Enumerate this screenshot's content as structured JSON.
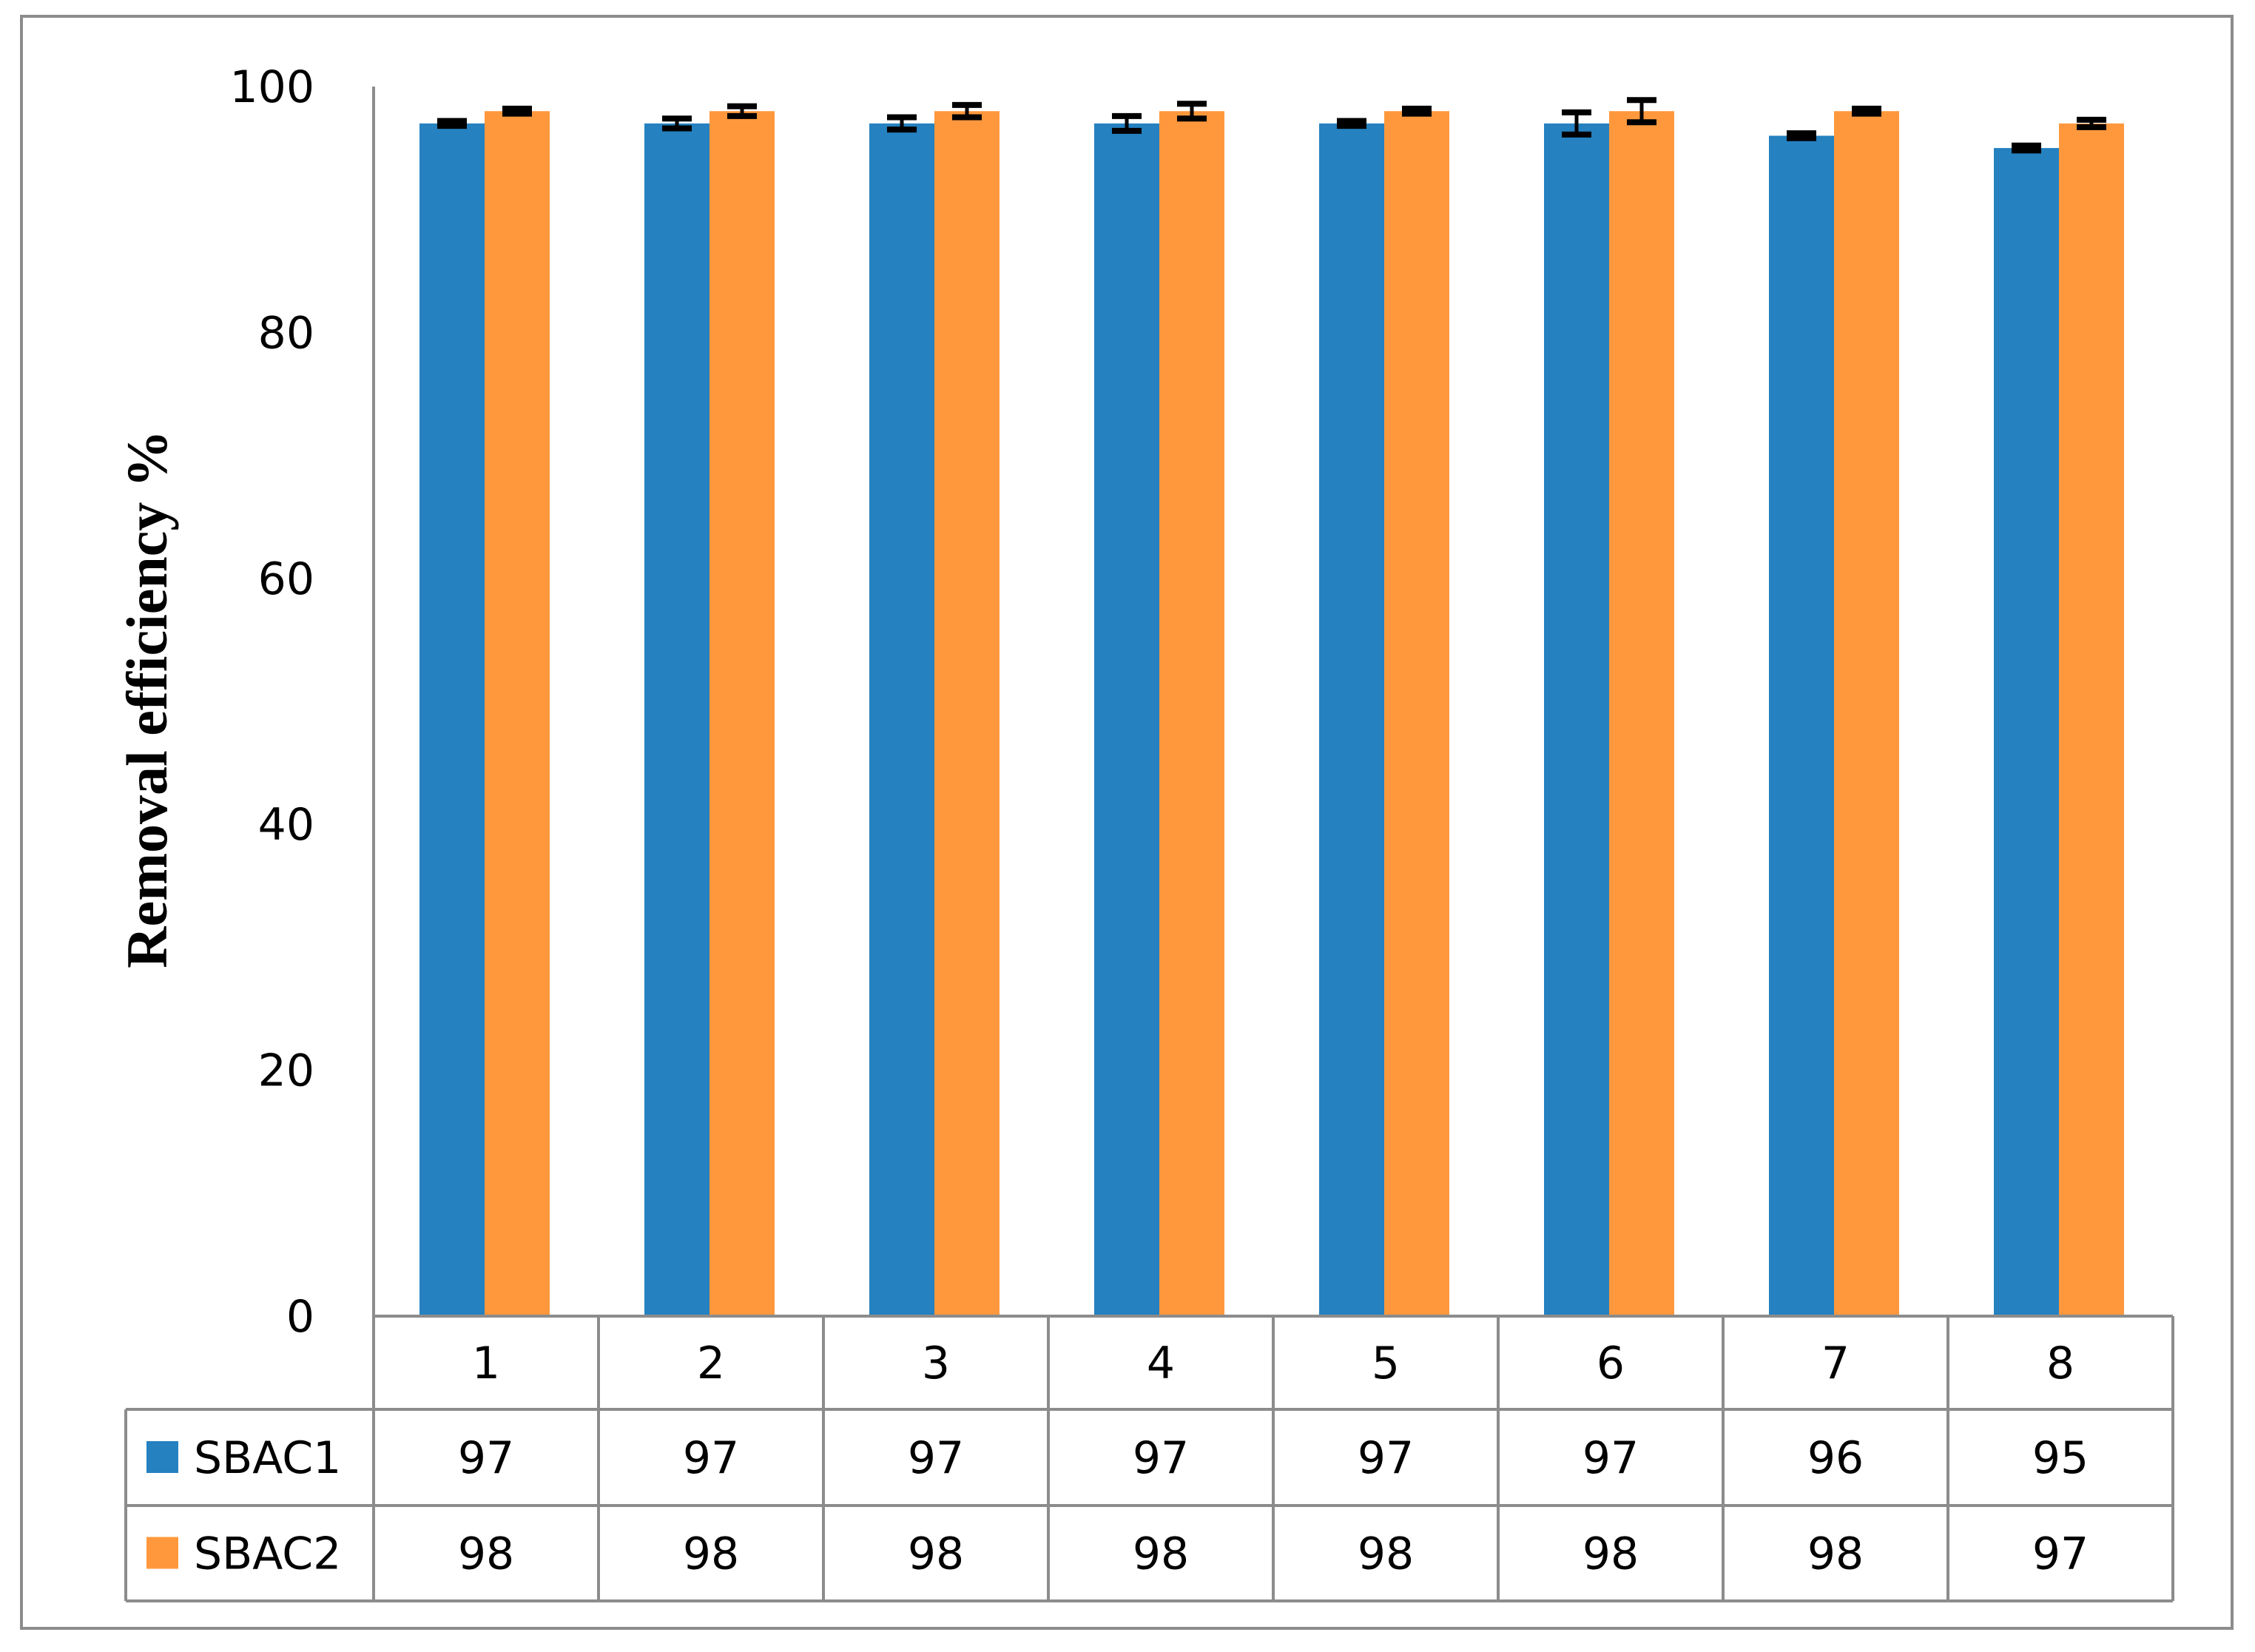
{
  "chart_data": {
    "type": "bar",
    "title": "",
    "xlabel": "",
    "ylabel": "Removal  efficiency %",
    "ylim": [
      0,
      100
    ],
    "yticks": [
      0,
      20,
      40,
      60,
      80,
      100
    ],
    "categories": [
      "1",
      "2",
      "3",
      "4",
      "5",
      "6",
      "7",
      "8"
    ],
    "grid": false,
    "legend_placement": "data-table",
    "series": [
      {
        "name": "SBAC1",
        "color": "#2581c0",
        "values": [
          97,
          97,
          97,
          97,
          97,
          97,
          96,
          95
        ],
        "errors": [
          0.2,
          0.4,
          0.5,
          0.6,
          0.2,
          0.9,
          0.2,
          0.2
        ]
      },
      {
        "name": "SBAC2",
        "color": "#ff983d",
        "values": [
          98,
          98,
          98,
          98,
          98,
          98,
          98,
          97
        ],
        "errors": [
          0.2,
          0.4,
          0.5,
          0.6,
          0.2,
          0.9,
          0.2,
          0.3
        ]
      }
    ]
  }
}
